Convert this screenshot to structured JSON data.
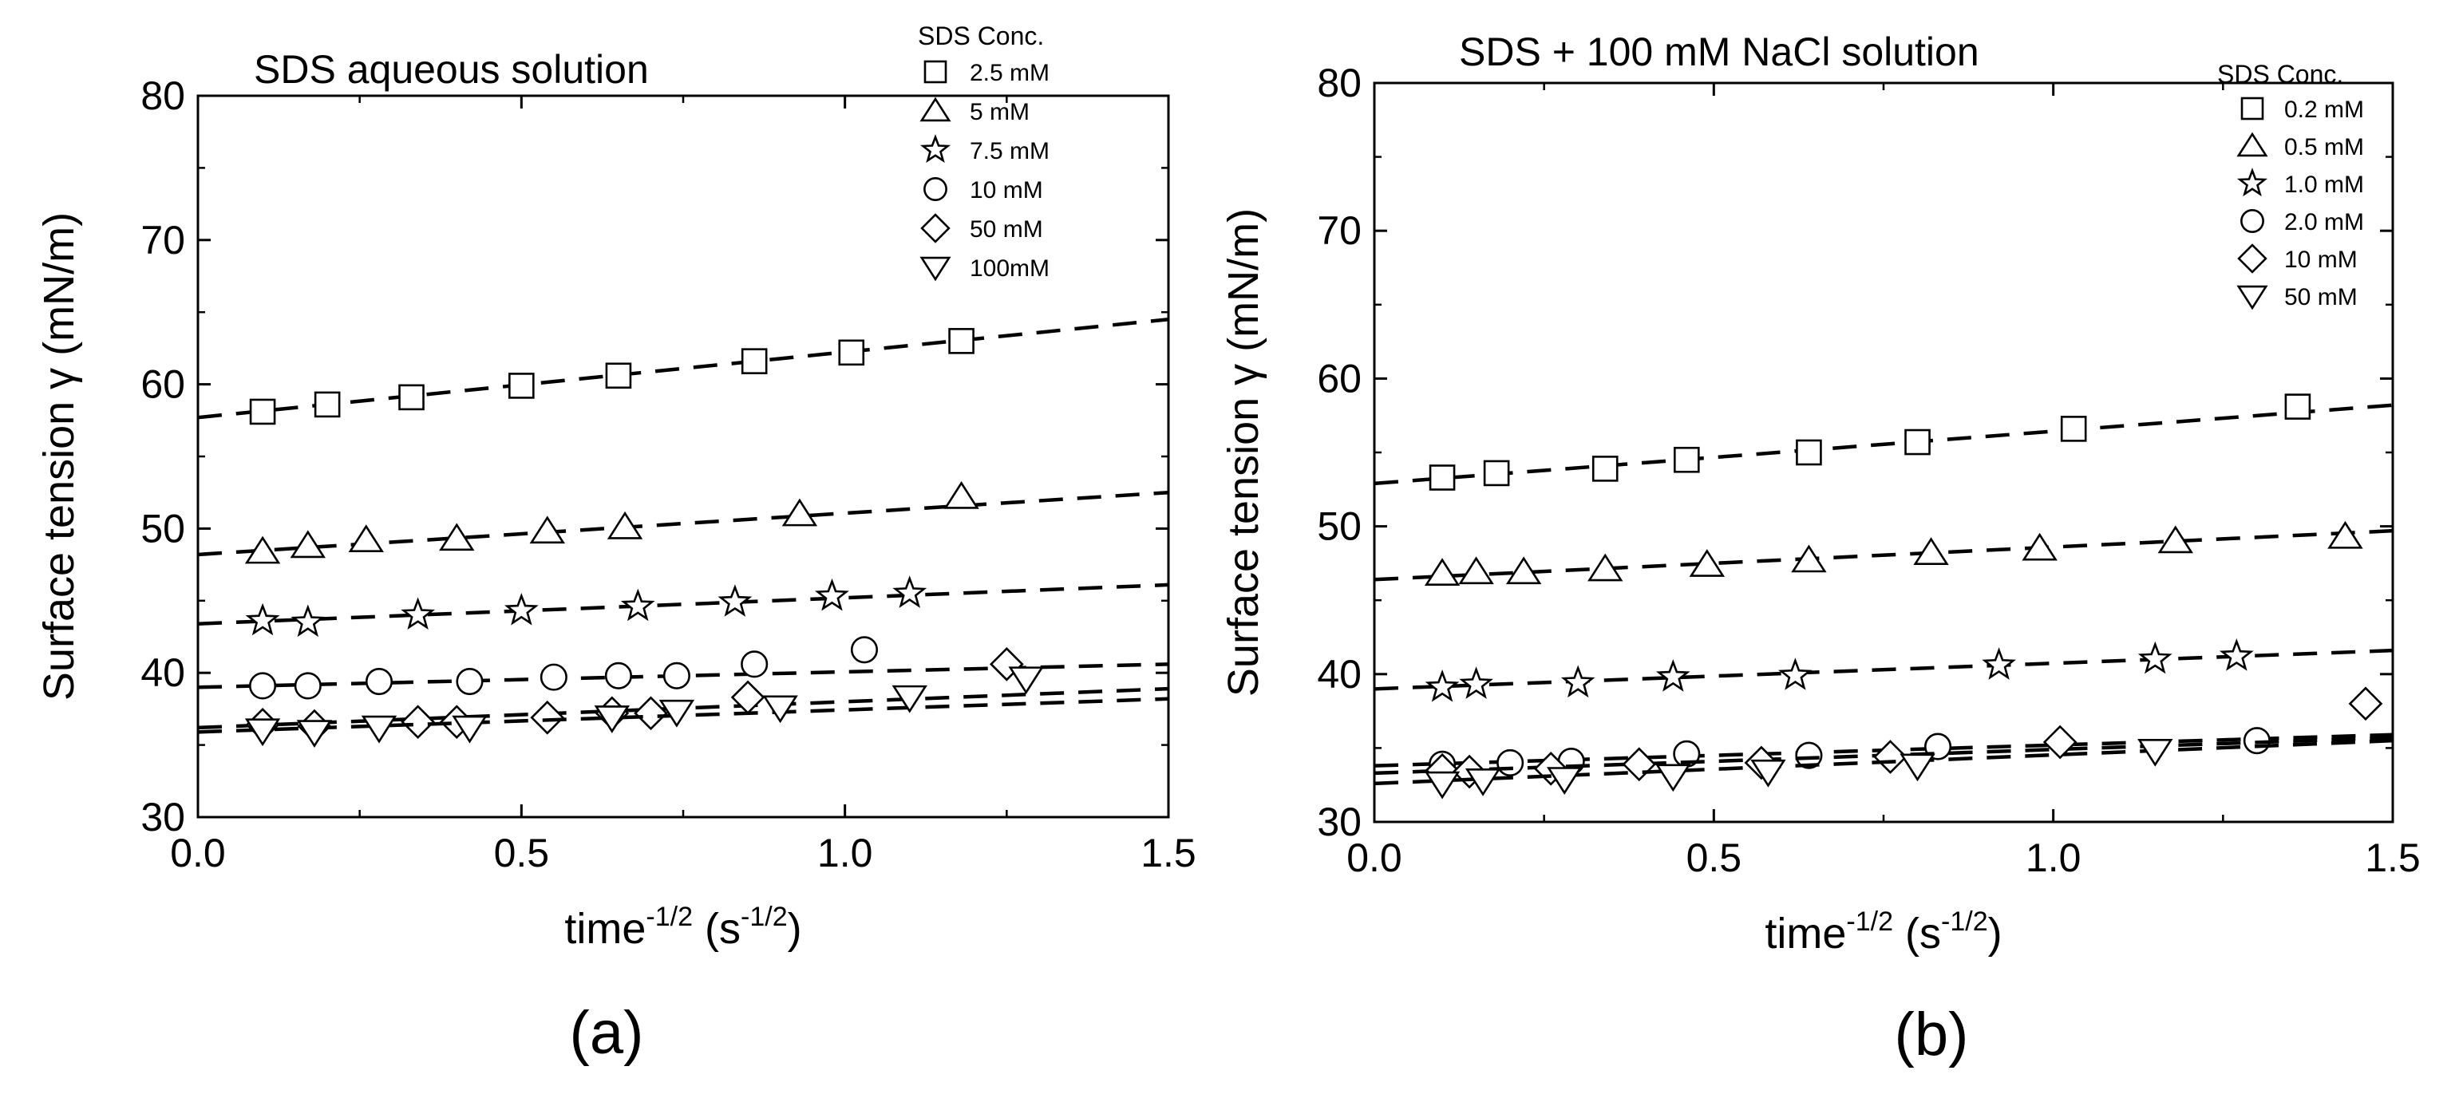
{
  "chart_data": [
    {
      "type": "scatter",
      "panel_label": "(a)",
      "title": "SDS aqueous solution",
      "xlabel": "time",
      "xlabel_sup": "-1/2",
      "xlabel_unit": " (s",
      "xlabel_unit_sup": "-1/2",
      "xlabel_close": ")",
      "ylabel": "Surface tension γ (mN/m)",
      "xlim": [
        0,
        1.5
      ],
      "ylim": [
        30,
        80
      ],
      "xticks": [
        "0.0",
        "0.5",
        "1.0",
        "1.5"
      ],
      "xtick_values": [
        0,
        0.5,
        1.0,
        1.5
      ],
      "yticks": [
        "30",
        "40",
        "50",
        "60",
        "70",
        "80"
      ],
      "ytick_values": [
        30,
        40,
        50,
        60,
        70,
        80
      ],
      "grid": false,
      "legend_title": "SDS Conc.",
      "legend_position": "top-right",
      "series": [
        {
          "name": "2.5 mM",
          "marker": "square",
          "x": [
            0.1,
            0.2,
            0.33,
            0.5,
            0.65,
            0.86,
            1.01,
            1.18
          ],
          "y": [
            58.1,
            58.6,
            59.1,
            59.9,
            60.6,
            61.6,
            62.2,
            63.0
          ],
          "fit": [
            57.7,
            64.5
          ]
        },
        {
          "name": "5 mM",
          "marker": "triangle-up",
          "x": [
            0.1,
            0.17,
            0.26,
            0.4,
            0.54,
            0.66,
            0.93,
            1.18
          ],
          "y": [
            48.4,
            48.8,
            49.2,
            49.3,
            49.8,
            50.1,
            51.0,
            52.2
          ],
          "fit": [
            48.2,
            52.5
          ]
        },
        {
          "name": "7.5 mM",
          "marker": "star",
          "x": [
            0.1,
            0.17,
            0.34,
            0.5,
            0.68,
            0.83,
            0.98,
            1.1
          ],
          "y": [
            43.6,
            43.5,
            44.0,
            44.3,
            44.6,
            44.9,
            45.3,
            45.5
          ],
          "fit": [
            43.4,
            46.1
          ]
        },
        {
          "name": "10 mM",
          "marker": "circle",
          "x": [
            0.1,
            0.17,
            0.28,
            0.42,
            0.55,
            0.65,
            0.74,
            0.86,
            1.03
          ],
          "y": [
            39.1,
            39.1,
            39.4,
            39.4,
            39.7,
            39.8,
            39.8,
            40.6,
            41.6
          ],
          "fit": [
            39.0,
            40.6
          ]
        },
        {
          "name": "50 mM",
          "marker": "diamond",
          "x": [
            0.1,
            0.18,
            0.34,
            0.4,
            0.54,
            0.64,
            0.7,
            0.85,
            1.25
          ],
          "y": [
            36.4,
            36.3,
            36.6,
            36.6,
            36.9,
            37.2,
            37.2,
            38.3,
            40.6
          ],
          "fit": [
            36.2,
            38.9
          ]
        },
        {
          "name": "100mM",
          "marker": "triangle-down",
          "x": [
            0.1,
            0.18,
            0.28,
            0.42,
            0.64,
            0.74,
            0.9,
            1.1,
            1.28
          ],
          "y": [
            36.0,
            35.9,
            36.2,
            36.2,
            36.9,
            37.3,
            37.6,
            38.3,
            39.6
          ],
          "fit": [
            35.9,
            38.2
          ]
        }
      ]
    },
    {
      "type": "scatter",
      "panel_label": "(b)",
      "title": "SDS + 100 mM NaCl solution",
      "xlabel": "time",
      "xlabel_sup": "-1/2",
      "xlabel_unit": " (s",
      "xlabel_unit_sup": "-1/2",
      "xlabel_close": ")",
      "ylabel": "Surface tension γ (mN/m)",
      "xlim": [
        0,
        1.5
      ],
      "ylim": [
        30,
        80
      ],
      "xticks": [
        "0.0",
        "0.5",
        "1.0",
        "1.5"
      ],
      "xtick_values": [
        0,
        0.5,
        1.0,
        1.5
      ],
      "yticks": [
        "30",
        "40",
        "50",
        "60",
        "70",
        "80"
      ],
      "ytick_values": [
        30,
        40,
        50,
        60,
        70,
        80
      ],
      "grid": false,
      "legend_title": "SDS Conc.",
      "legend_position": "top-right",
      "series": [
        {
          "name": "0.2 mM",
          "marker": "square",
          "x": [
            0.1,
            0.18,
            0.34,
            0.46,
            0.64,
            0.8,
            1.03,
            1.36
          ],
          "y": [
            53.3,
            53.6,
            53.9,
            54.5,
            55.0,
            55.7,
            56.6,
            58.1
          ],
          "fit": [
            52.9,
            58.2
          ]
        },
        {
          "name": "0.5 mM",
          "marker": "triangle-up",
          "x": [
            0.1,
            0.15,
            0.22,
            0.34,
            0.49,
            0.64,
            0.82,
            0.98,
            1.18,
            1.43
          ],
          "y": [
            46.8,
            46.9,
            46.9,
            47.1,
            47.4,
            47.7,
            48.2,
            48.5,
            49.0,
            49.3
          ],
          "fit": [
            46.4,
            49.7
          ]
        },
        {
          "name": "1.0 mM",
          "marker": "star",
          "x": [
            0.1,
            0.15,
            0.3,
            0.44,
            0.62,
            0.92,
            1.15,
            1.27
          ],
          "y": [
            39.1,
            39.3,
            39.4,
            39.8,
            39.9,
            40.6,
            41.0,
            41.2
          ],
          "fit": [
            39.0,
            41.6
          ]
        },
        {
          "name": "2.0 mM",
          "marker": "circle",
          "x": [
            0.1,
            0.2,
            0.29,
            0.46,
            0.64,
            0.83,
            1.3
          ],
          "y": [
            33.9,
            34.0,
            34.1,
            34.6,
            34.5,
            35.1,
            35.5
          ],
          "fit": [
            33.8,
            35.9
          ]
        },
        {
          "name": "10 mM",
          "marker": "diamond",
          "x": [
            0.1,
            0.14,
            0.26,
            0.39,
            0.57,
            0.76,
            1.01,
            1.46
          ],
          "y": [
            33.5,
            33.4,
            33.6,
            33.9,
            34.0,
            34.4,
            35.4,
            38.0
          ],
          "fit": [
            33.3,
            35.7
          ]
        },
        {
          "name": "50 mM",
          "marker": "triangle-down",
          "x": [
            0.1,
            0.16,
            0.28,
            0.44,
            0.58,
            0.8,
            1.15
          ],
          "y": [
            32.6,
            32.8,
            32.9,
            33.1,
            33.4,
            33.8,
            34.8
          ],
          "fit": [
            32.6,
            35.5
          ]
        }
      ]
    }
  ]
}
